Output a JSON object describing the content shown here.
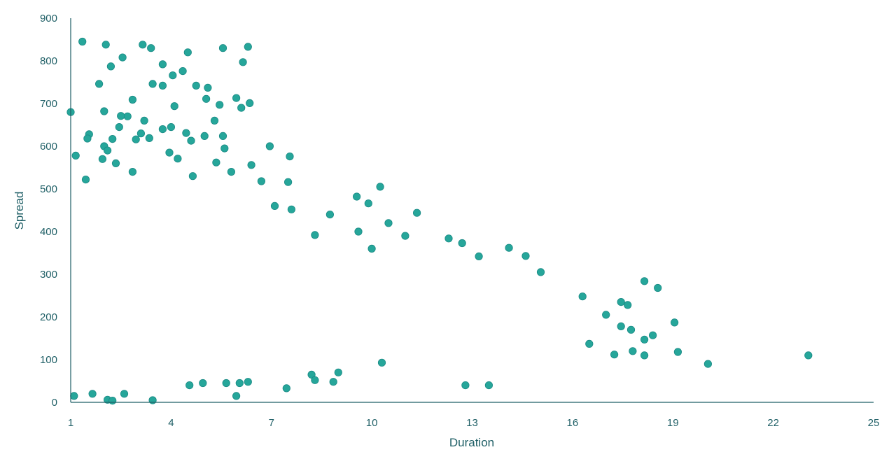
{
  "chart_data": {
    "type": "scatter",
    "title": "",
    "xlabel": "Duration",
    "ylabel": "Spread",
    "xlim": [
      1,
      25
    ],
    "ylim": [
      0,
      900
    ],
    "x_ticks": [
      "1",
      "4",
      "7",
      "10",
      "13",
      "16",
      "19",
      "22",
      "25"
    ],
    "y_ticks": [
      "0",
      "100",
      "200",
      "300",
      "400",
      "500",
      "600",
      "700",
      "800",
      "900"
    ],
    "grid": false,
    "legend": "none",
    "marker_color": "#26a69a",
    "marker_edge_color": "#1a8a85",
    "series": [
      {
        "points": [
          [
            1.0,
            680
          ],
          [
            1.35,
            845
          ],
          [
            2.05,
            838
          ],
          [
            2.55,
            808
          ],
          [
            3.15,
            838
          ],
          [
            3.4,
            830
          ],
          [
            4.5,
            820
          ],
          [
            5.55,
            830
          ],
          [
            6.3,
            833
          ],
          [
            6.15,
            797
          ],
          [
            2.2,
            787
          ],
          [
            3.75,
            792
          ],
          [
            4.35,
            776
          ],
          [
            4.05,
            766
          ],
          [
            1.85,
            746
          ],
          [
            3.45,
            746
          ],
          [
            3.75,
            742
          ],
          [
            4.75,
            742
          ],
          [
            5.1,
            737
          ],
          [
            5.95,
            713
          ],
          [
            5.05,
            711
          ],
          [
            2.85,
            709
          ],
          [
            5.45,
            697
          ],
          [
            6.35,
            701
          ],
          [
            6.1,
            690
          ],
          [
            4.1,
            694
          ],
          [
            2.0,
            682
          ],
          [
            2.7,
            670
          ],
          [
            2.5,
            671
          ],
          [
            3.2,
            660
          ],
          [
            5.3,
            660
          ],
          [
            2.45,
            645
          ],
          [
            4.0,
            645
          ],
          [
            3.1,
            630
          ],
          [
            3.75,
            640
          ],
          [
            1.55,
            628
          ],
          [
            4.45,
            631
          ],
          [
            5.0,
            624
          ],
          [
            5.55,
            624
          ],
          [
            2.25,
            617
          ],
          [
            1.5,
            618
          ],
          [
            2.95,
            616
          ],
          [
            3.35,
            619
          ],
          [
            4.6,
            613
          ],
          [
            2.0,
            600
          ],
          [
            6.95,
            600
          ],
          [
            2.1,
            590
          ],
          [
            3.95,
            585
          ],
          [
            5.6,
            595
          ],
          [
            1.15,
            578
          ],
          [
            7.55,
            576
          ],
          [
            1.95,
            570
          ],
          [
            2.35,
            560
          ],
          [
            4.2,
            571
          ],
          [
            5.35,
            562
          ],
          [
            6.4,
            556
          ],
          [
            1.45,
            522
          ],
          [
            2.85,
            540
          ],
          [
            4.65,
            530
          ],
          [
            5.8,
            540
          ],
          [
            6.7,
            518
          ],
          [
            7.5,
            516
          ],
          [
            10.25,
            505
          ],
          [
            9.55,
            482
          ],
          [
            9.9,
            466
          ],
          [
            7.1,
            460
          ],
          [
            7.6,
            452
          ],
          [
            8.75,
            440
          ],
          [
            11.35,
            444
          ],
          [
            10.5,
            420
          ],
          [
            9.6,
            400
          ],
          [
            8.3,
            392
          ],
          [
            12.3,
            384
          ],
          [
            11.0,
            390
          ],
          [
            12.7,
            373
          ],
          [
            10.0,
            360
          ],
          [
            14.1,
            362
          ],
          [
            14.6,
            343
          ],
          [
            13.2,
            342
          ],
          [
            15.05,
            305
          ],
          [
            18.15,
            284
          ],
          [
            18.55,
            268
          ],
          [
            16.3,
            248
          ],
          [
            17.45,
            235
          ],
          [
            17.65,
            228
          ],
          [
            17.0,
            205
          ],
          [
            19.05,
            187
          ],
          [
            17.75,
            170
          ],
          [
            17.45,
            178
          ],
          [
            18.4,
            157
          ],
          [
            18.15,
            147
          ],
          [
            16.5,
            137
          ],
          [
            17.25,
            112
          ],
          [
            17.8,
            120
          ],
          [
            18.15,
            110
          ],
          [
            19.15,
            118
          ],
          [
            20.05,
            90
          ],
          [
            23.05,
            110
          ],
          [
            12.8,
            40
          ],
          [
            13.5,
            40
          ],
          [
            7.45,
            33
          ],
          [
            9.0,
            70
          ],
          [
            8.2,
            65
          ],
          [
            8.85,
            48
          ],
          [
            10.3,
            93
          ],
          [
            8.3,
            52
          ],
          [
            3.45,
            5
          ],
          [
            5.95,
            15
          ],
          [
            1.1,
            15
          ],
          [
            2.1,
            6
          ],
          [
            2.25,
            4
          ],
          [
            6.3,
            48
          ],
          [
            5.65,
            45
          ],
          [
            4.95,
            45
          ],
          [
            6.05,
            45
          ],
          [
            2.6,
            20
          ],
          [
            4.55,
            40
          ],
          [
            1.65,
            20
          ]
        ]
      }
    ]
  }
}
